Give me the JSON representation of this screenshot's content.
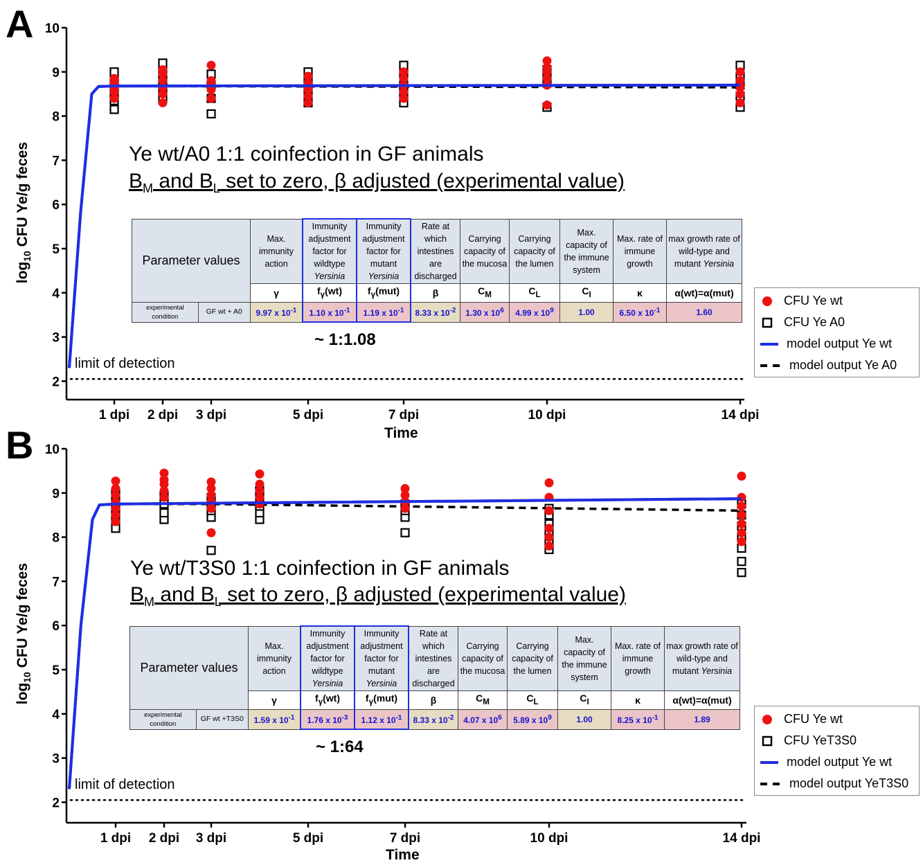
{
  "shared": {
    "ylabel": "log10 CFU Ye/g feces",
    "xlabel": "Time",
    "lod_label": "limit of detection",
    "col_headers": [
      "Max. immunity action",
      "Immunity adjustment factor for wildtype Yersinia",
      "Immunity adjustment factor for mutant Yersinia",
      "Rate at which intestines are discharged",
      "Carrying capacity of the mucosa",
      "Carrying capacity of the lumen",
      "Max. capacity of the immune system",
      "Max. rate of immune growth",
      "max growth rate of wild-type and mutant Yersinia"
    ],
    "symbols": [
      "γ",
      "fγ(wt)",
      "fγ(mut)",
      "β",
      "CM",
      "CL",
      "CI",
      "κ",
      "α(wt)=α(mut)"
    ],
    "param_values_label": "Parameter values",
    "condition_label": "experimental condition",
    "colors": {
      "wt": "#ee1111",
      "model_wt": "#1f2ee0",
      "model_mut": "#000000",
      "highlight": "#1f2ee0"
    }
  },
  "panels": [
    {
      "letter": "A",
      "title": "Ye wt/A0 1:1 coinfection in GF animals",
      "subtitle": "BM and BL set to zero, β adjusted (experimental value)",
      "condition": "GF wt + A0",
      "values": [
        "9.97 x 10-1",
        "1.10 x 10-1",
        "1.19 x 10-1",
        "8.33 x 10-2",
        "1.30 x 106",
        "4.99 x 109",
        "1.00",
        "6.50 x 10-1",
        "1.60"
      ],
      "ratio": "~ 1:1.08",
      "legend": [
        "CFU Ye wt",
        "CFU Ye A0",
        "model output Ye wt",
        "model output Ye A0"
      ]
    },
    {
      "letter": "B",
      "title": "Ye wt/T3S0 1:1 coinfection in GF animals",
      "subtitle": "BM and BL set to zero, β adjusted (experimental value)",
      "condition": "GF wt +T3S0",
      "values": [
        "1.59 x 10-1",
        "1.76 x 10-3",
        "1.12 x 10-1",
        "8.33 x 10-2",
        "4.07 x 106",
        "5.89 x 109",
        "1.00",
        "8.25 x 10-1",
        "1.89"
      ],
      "ratio": "~ 1:64",
      "legend": [
        "CFU Ye wt",
        "CFU YeT3S0",
        "model output Ye wt",
        "model output YeT3S0"
      ]
    }
  ],
  "chart_data": [
    {
      "type": "scatter",
      "title": "Ye wt/A0 1:1 coinfection in GF animals",
      "xlabel": "Time",
      "ylabel": "log10 CFU Ye/g feces",
      "ylim": [
        1.5,
        10
      ],
      "yticks": [
        2,
        3,
        4,
        5,
        6,
        7,
        8,
        9,
        10
      ],
      "x_ticks": [
        1,
        2,
        3,
        5,
        7,
        10,
        14
      ],
      "x_tick_labels": [
        "1 dpi",
        "2 dpi",
        "3 dpi",
        "5 dpi",
        "7 dpi",
        "10 dpi",
        "14 dpi"
      ],
      "limit_of_detection": 2.05,
      "legend_position": "right",
      "series": [
        {
          "name": "CFU Ye wt",
          "marker": "filled-circle",
          "points": [
            [
              1,
              8.4
            ],
            [
              1,
              8.55
            ],
            [
              1,
              8.65
            ],
            [
              1,
              8.75
            ],
            [
              1,
              8.85
            ],
            [
              2,
              8.3
            ],
            [
              2,
              8.5
            ],
            [
              2,
              8.65
            ],
            [
              2,
              8.8
            ],
            [
              2,
              8.95
            ],
            [
              2,
              9.05
            ],
            [
              3,
              9.15
            ],
            [
              3,
              8.4
            ],
            [
              3,
              8.6
            ],
            [
              3,
              8.7
            ],
            [
              3,
              8.8
            ],
            [
              5,
              8.3
            ],
            [
              5,
              8.45
            ],
            [
              5,
              8.6
            ],
            [
              5,
              8.75
            ],
            [
              5,
              8.9
            ],
            [
              7,
              8.4
            ],
            [
              7,
              8.55
            ],
            [
              7,
              8.7
            ],
            [
              7,
              8.85
            ],
            [
              7,
              9.0
            ],
            [
              10,
              9.25
            ],
            [
              10,
              8.7
            ],
            [
              10,
              8.85
            ],
            [
              10,
              9.0
            ],
            [
              10,
              9.1
            ],
            [
              10,
              8.25
            ],
            [
              14,
              8.3
            ],
            [
              14,
              8.5
            ],
            [
              14,
              8.65
            ],
            [
              14,
              8.8
            ],
            [
              14,
              9.0
            ]
          ]
        },
        {
          "name": "CFU Ye A0",
          "marker": "open-square",
          "points": [
            [
              1,
              8.15
            ],
            [
              1,
              8.35
            ],
            [
              1,
              8.5
            ],
            [
              1,
              8.65
            ],
            [
              1,
              8.8
            ],
            [
              1,
              9.0
            ],
            [
              2,
              8.4
            ],
            [
              2,
              8.6
            ],
            [
              2,
              8.8
            ],
            [
              2,
              9.0
            ],
            [
              2,
              9.2
            ],
            [
              3,
              8.05
            ],
            [
              3,
              8.4
            ],
            [
              3,
              8.7
            ],
            [
              3,
              8.95
            ],
            [
              5,
              8.3
            ],
            [
              5,
              8.5
            ],
            [
              5,
              8.7
            ],
            [
              5,
              8.85
            ],
            [
              5,
              9.0
            ],
            [
              7,
              8.3
            ],
            [
              7,
              8.5
            ],
            [
              7,
              8.7
            ],
            [
              7,
              8.95
            ],
            [
              7,
              9.15
            ],
            [
              10,
              8.2
            ],
            [
              10,
              8.75
            ],
            [
              10,
              8.95
            ],
            [
              10,
              9.05
            ],
            [
              14,
              8.2
            ],
            [
              14,
              8.45
            ],
            [
              14,
              8.7
            ],
            [
              14,
              8.9
            ],
            [
              14,
              9.15
            ]
          ]
        },
        {
          "name": "model output Ye wt",
          "type": "line",
          "points": [
            [
              0,
              2.3
            ],
            [
              0.25,
              5.8
            ],
            [
              0.5,
              8.5
            ],
            [
              0.65,
              8.67
            ],
            [
              1,
              8.68
            ],
            [
              14,
              8.7
            ]
          ]
        },
        {
          "name": "model output Ye A0",
          "type": "dashed-line",
          "points": [
            [
              0,
              2.3
            ],
            [
              0.25,
              5.8
            ],
            [
              0.5,
              8.5
            ],
            [
              0.65,
              8.67
            ],
            [
              1,
              8.68
            ],
            [
              14,
              8.65
            ]
          ]
        }
      ]
    },
    {
      "type": "scatter",
      "title": "Ye wt/T3S0 1:1 coinfection in GF animals",
      "xlabel": "Time",
      "ylabel": "log10 CFU Ye/g feces",
      "ylim": [
        1.5,
        10
      ],
      "yticks": [
        2,
        3,
        4,
        5,
        6,
        7,
        8,
        9,
        10
      ],
      "x_ticks": [
        1,
        2,
        3,
        5,
        7,
        10,
        14
      ],
      "x_tick_labels": [
        "1 dpi",
        "2 dpi",
        "3 dpi",
        "5 dpi",
        "7 dpi",
        "10 dpi",
        "14 dpi"
      ],
      "limit_of_detection": 2.05,
      "legend_position": "right",
      "series": [
        {
          "name": "CFU Ye wt",
          "marker": "filled-circle",
          "points": [
            [
              1,
              9.27
            ],
            [
              1,
              9.1
            ],
            [
              1,
              8.95
            ],
            [
              1,
              8.8
            ],
            [
              1,
              8.65
            ],
            [
              1,
              8.5
            ],
            [
              1,
              8.35
            ],
            [
              2,
              9.45
            ],
            [
              2,
              9.3
            ],
            [
              2,
              9.2
            ],
            [
              2,
              9.05
            ],
            [
              2,
              8.9
            ],
            [
              3,
              9.25
            ],
            [
              3,
              9.1
            ],
            [
              3,
              8.95
            ],
            [
              3,
              8.8
            ],
            [
              3,
              8.65
            ],
            [
              3,
              8.1
            ],
            [
              4,
              9.43
            ],
            [
              4,
              9.2
            ],
            [
              4,
              9.05
            ],
            [
              4,
              8.9
            ],
            [
              4,
              8.75
            ],
            [
              7,
              9.1
            ],
            [
              7,
              8.95
            ],
            [
              7,
              8.8
            ],
            [
              7,
              8.65
            ],
            [
              10,
              9.23
            ],
            [
              10,
              8.9
            ],
            [
              10,
              8.6
            ],
            [
              10,
              8.2
            ],
            [
              10,
              8.0
            ],
            [
              10,
              7.8
            ],
            [
              14,
              9.38
            ],
            [
              14,
              8.9
            ],
            [
              14,
              8.7
            ],
            [
              14,
              8.5
            ],
            [
              14,
              8.3
            ],
            [
              14,
              8.1
            ],
            [
              14,
              7.9
            ]
          ]
        },
        {
          "name": "CFU YeT3S0",
          "marker": "open-square",
          "points": [
            [
              1,
              8.2
            ],
            [
              1,
              8.4
            ],
            [
              1,
              8.6
            ],
            [
              1,
              8.8
            ],
            [
              1,
              9.0
            ],
            [
              2,
              8.4
            ],
            [
              2,
              8.55
            ],
            [
              2,
              8.75
            ],
            [
              2,
              8.95
            ],
            [
              3,
              7.7
            ],
            [
              3,
              8.45
            ],
            [
              3,
              8.6
            ],
            [
              3,
              8.75
            ],
            [
              3,
              8.9
            ],
            [
              4,
              8.4
            ],
            [
              4,
              8.55
            ],
            [
              4,
              8.7
            ],
            [
              4,
              8.9
            ],
            [
              4,
              9.05
            ],
            [
              7,
              8.1
            ],
            [
              7,
              8.45
            ],
            [
              7,
              8.6
            ],
            [
              7,
              8.75
            ],
            [
              10,
              7.72
            ],
            [
              10,
              7.9
            ],
            [
              10,
              8.1
            ],
            [
              10,
              8.3
            ],
            [
              10,
              8.5
            ],
            [
              10,
              8.65
            ],
            [
              14,
              7.2
            ],
            [
              14,
              7.45
            ],
            [
              14,
              7.75
            ],
            [
              14,
              8.0
            ],
            [
              14,
              8.25
            ],
            [
              14,
              8.5
            ],
            [
              14,
              8.75
            ]
          ]
        },
        {
          "name": "model output Ye wt",
          "type": "line",
          "points": [
            [
              0,
              2.3
            ],
            [
              0.25,
              6.0
            ],
            [
              0.5,
              8.4
            ],
            [
              0.65,
              8.73
            ],
            [
              1,
              8.75
            ],
            [
              14,
              8.87
            ]
          ]
        },
        {
          "name": "model output YeT3S0",
          "type": "dashed-line",
          "points": [
            [
              0,
              2.3
            ],
            [
              0.25,
              6.0
            ],
            [
              0.5,
              8.4
            ],
            [
              0.65,
              8.73
            ],
            [
              1,
              8.75
            ],
            [
              3,
              8.75
            ],
            [
              14,
              8.6
            ]
          ]
        }
      ]
    }
  ]
}
